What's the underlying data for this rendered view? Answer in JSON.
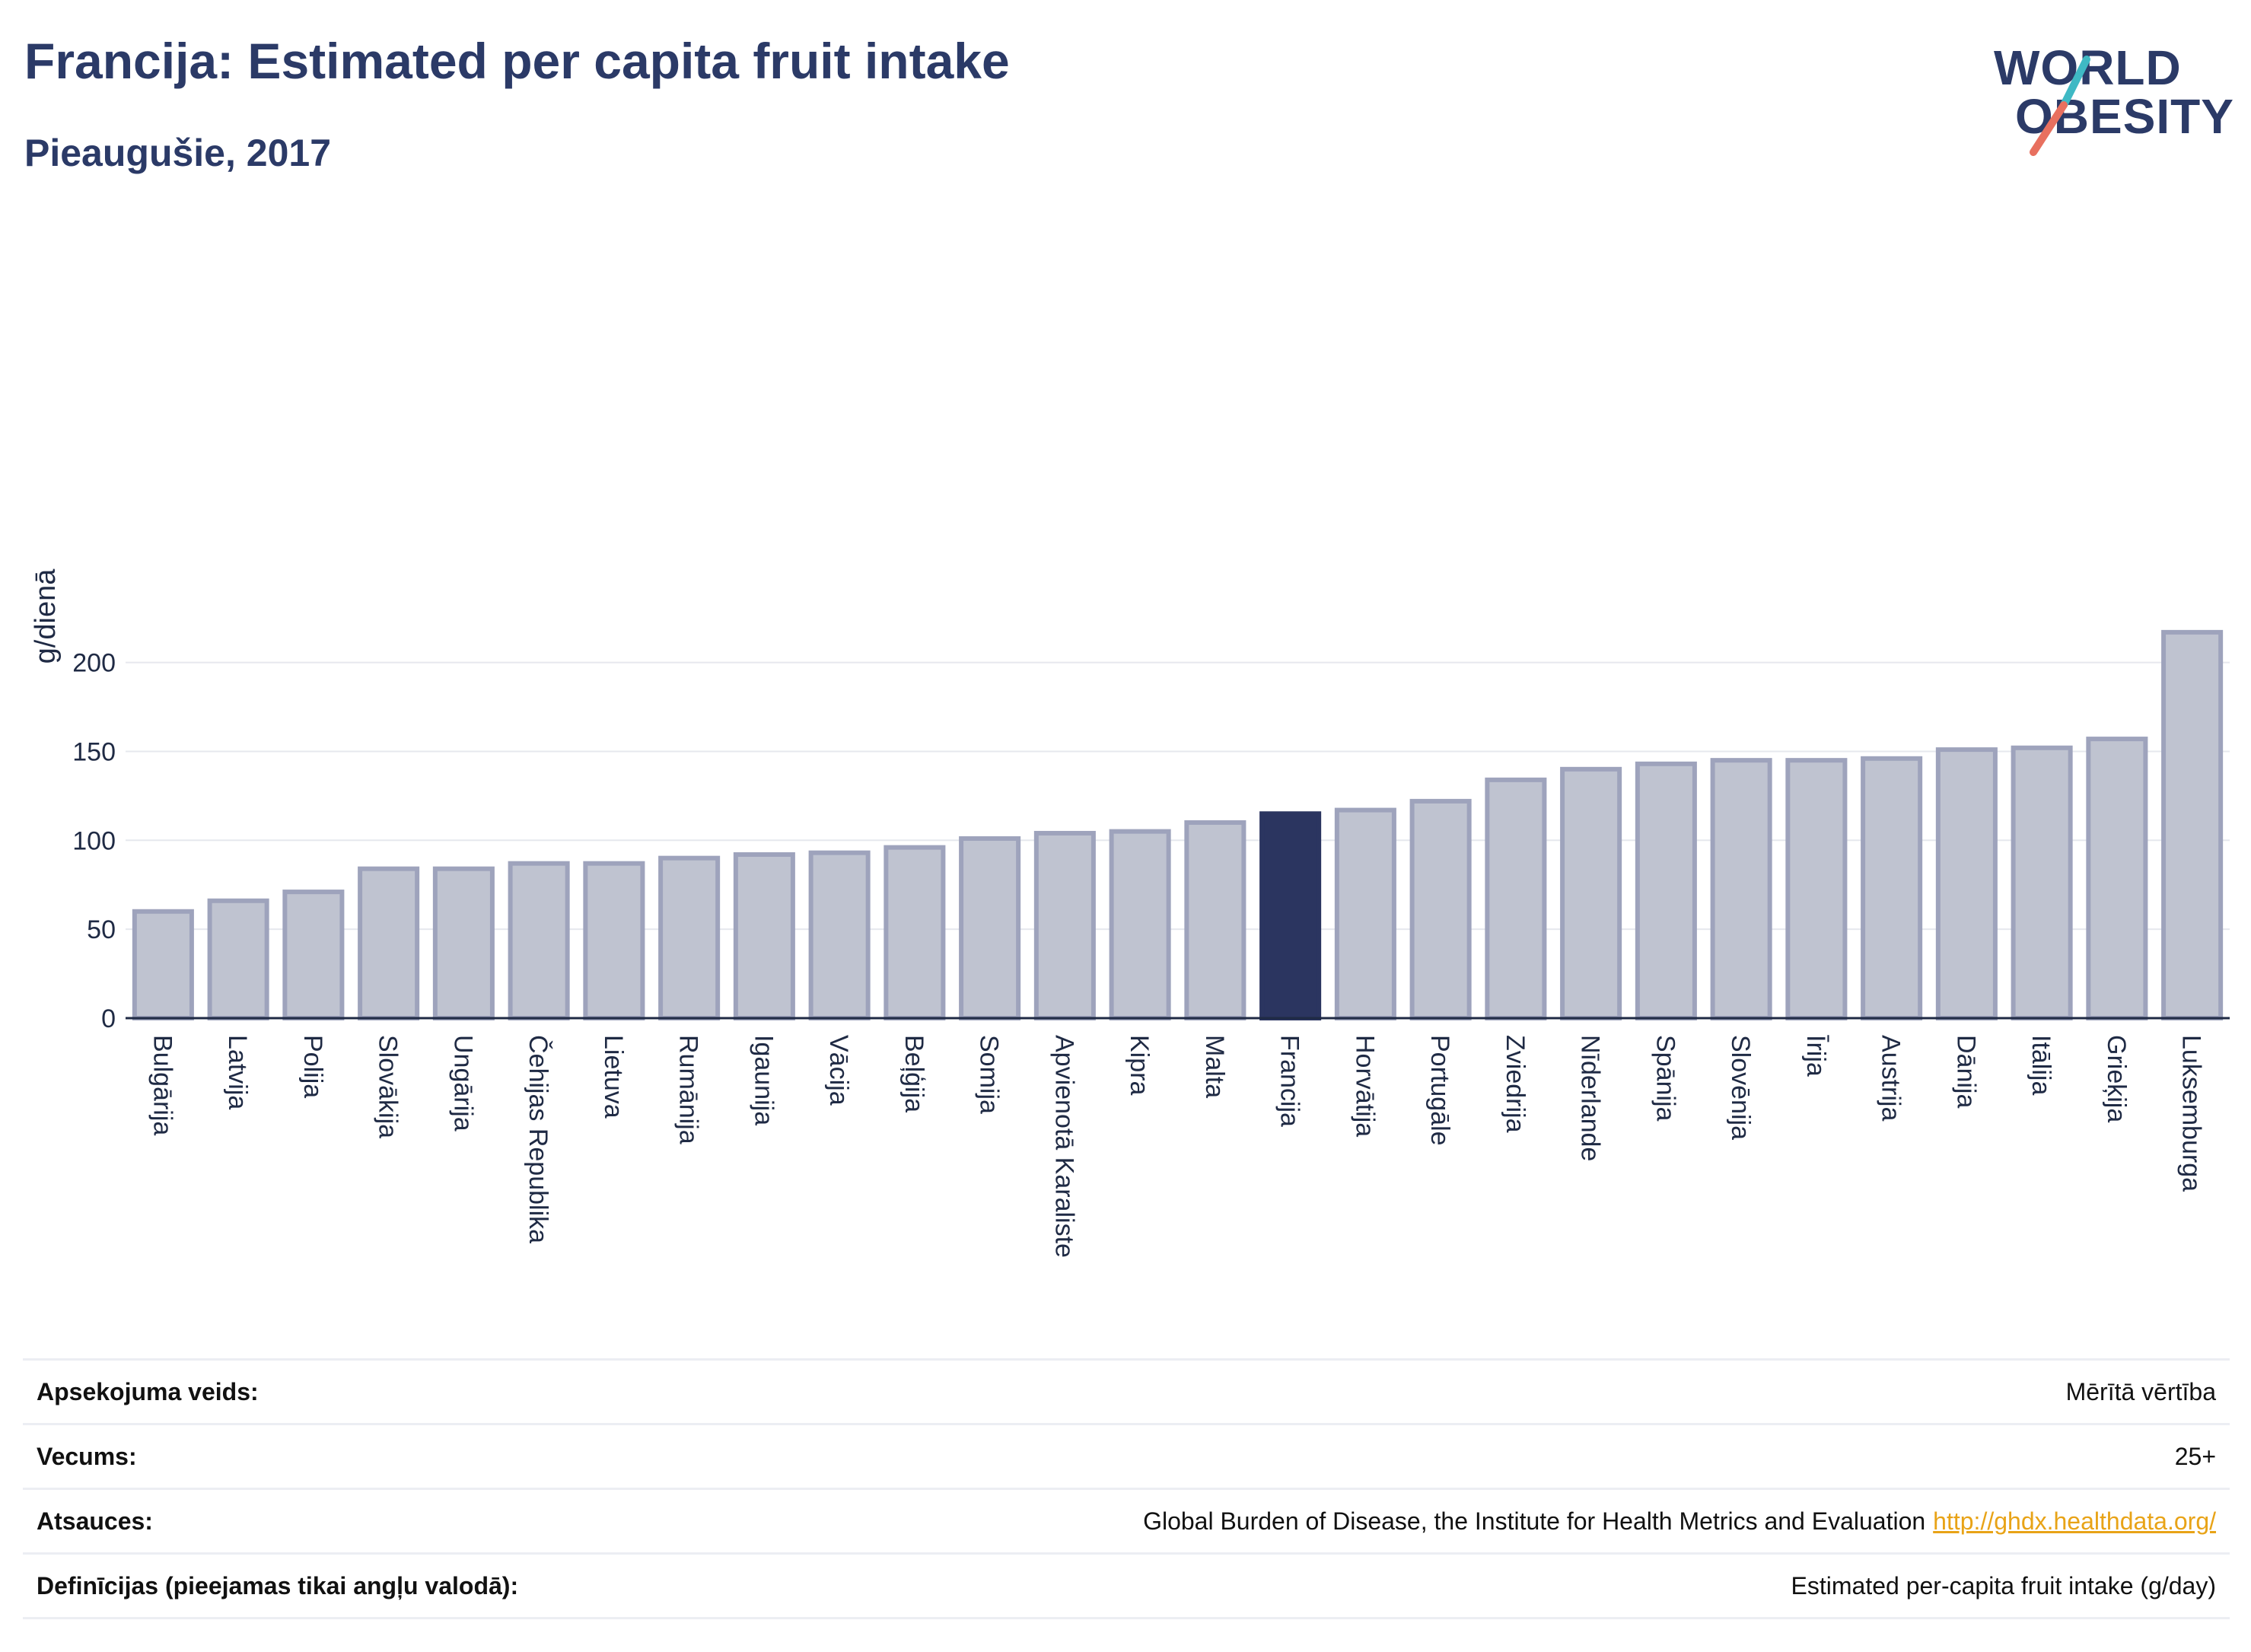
{
  "header": {
    "title": "Francija: Estimated per capita fruit intake",
    "subtitle": "Pieaugušie, 2017"
  },
  "logo": {
    "line1": "WORLD",
    "line2": "OBESITY",
    "slash_colors": [
      "#3fb9c4",
      "#e8705f"
    ]
  },
  "colors": {
    "bar": "#bfc3d0",
    "bar_border": "#9ea3bc",
    "highlight": "#2b3560",
    "grid": "#e6e8ee",
    "axis": "#1f2a44",
    "text": "#1f2a44"
  },
  "chart_data": {
    "type": "bar",
    "title": "Francija: Estimated per capita fruit intake",
    "subtitle": "Pieaugušie, 2017",
    "xlabel": "",
    "ylabel": "g/dienā",
    "ylim": [
      0,
      225
    ],
    "yticks": [
      0,
      50,
      100,
      150,
      200
    ],
    "grid": true,
    "highlight": "Francija",
    "categories": [
      "Bulgārija",
      "Latvija",
      "Polija",
      "Slovākija",
      "Ungārija",
      "Čehijas Republika",
      "Lietuva",
      "Rumānija",
      "Igaunija",
      "Vācija",
      "Beļģija",
      "Somija",
      "Apvienotā Karaliste",
      "Kipra",
      "Malta",
      "Francija",
      "Horvātija",
      "Portugāle",
      "Zviedrija",
      "Nīderlande",
      "Spānija",
      "Slovēnija",
      "Īrija",
      "Austrija",
      "Dānija",
      "Itālija",
      "Grieķija",
      "Luksemburga"
    ],
    "values": [
      60,
      66,
      71,
      84,
      84,
      87,
      87,
      90,
      92,
      93,
      96,
      101,
      104,
      105,
      110,
      115,
      117,
      122,
      134,
      140,
      143,
      145,
      145,
      146,
      151,
      152,
      157,
      217
    ]
  },
  "meta": [
    {
      "label": "Apsekojuma veids:",
      "value": "Mērītā vērtība"
    },
    {
      "label": "Vecums:",
      "value": "25+"
    },
    {
      "label": "Atsauces:",
      "value": "Global Burden of Disease, the Institute for Health Metrics and Evaluation",
      "link": "http://ghdx.healthdata.org/"
    },
    {
      "label": "Definīcijas (pieejamas tikai angļu valodā):",
      "value": "Estimated per-capita fruit intake (g/day)"
    }
  ]
}
